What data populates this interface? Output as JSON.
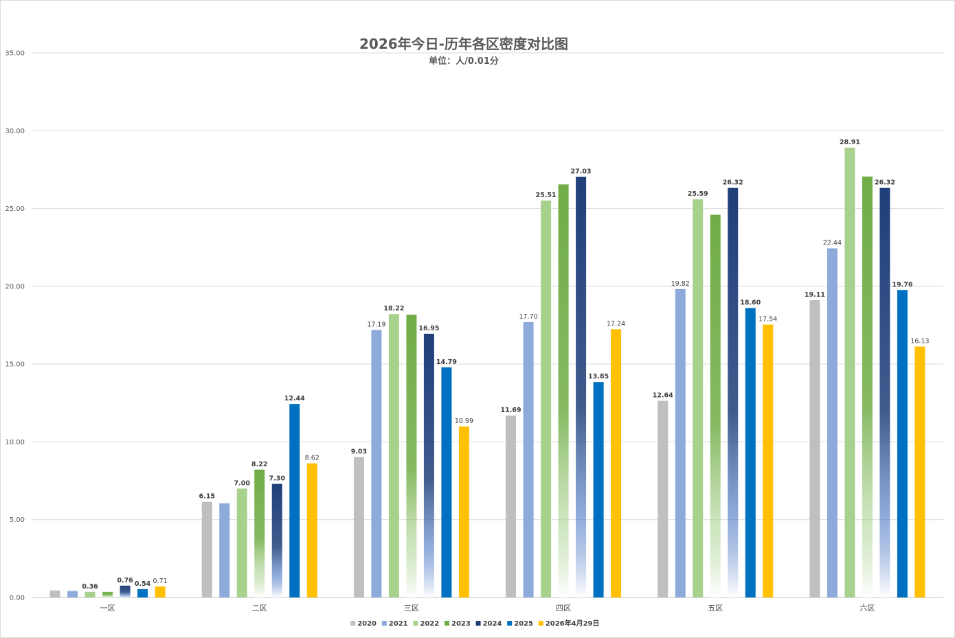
{
  "chart_data": {
    "type": "bar",
    "title": "2026年今日-历年各区密度对比图",
    "subtitle": "单位：人/0.01分",
    "categories": [
      "一区",
      "二区",
      "三区",
      "四区",
      "五区",
      "六区"
    ],
    "ylim": [
      0,
      35
    ],
    "yticks": [
      "0.00",
      "5.00",
      "10.00",
      "15.00",
      "20.00",
      "25.00",
      "30.00",
      "35.00"
    ],
    "ytick_values": [
      0,
      5,
      10,
      15,
      20,
      25,
      30,
      35
    ],
    "grid": true,
    "legend_position": "bottom",
    "series": [
      {
        "name": "2020",
        "color": "#bfbfbf",
        "gradient": false,
        "values": [
          0.45,
          6.15,
          9.03,
          11.69,
          12.64,
          19.11
        ],
        "labels": [
          "",
          "6.15",
          "9.03",
          "11.69",
          "12.64",
          "19.11"
        ],
        "bold": [
          false,
          true,
          true,
          true,
          true,
          true
        ]
      },
      {
        "name": "2021",
        "color": "#8eaadb",
        "gradient": false,
        "values": [
          0.42,
          6.05,
          17.19,
          17.7,
          19.82,
          22.44
        ],
        "labels": [
          "",
          "",
          "17.19",
          "17.70",
          "19.82",
          "22.44"
        ],
        "bold": [
          false,
          false,
          false,
          false,
          false,
          false
        ]
      },
      {
        "name": "2022",
        "color": "#a9d18e",
        "gradient": false,
        "values": [
          0.36,
          7.0,
          18.22,
          25.51,
          25.59,
          28.91
        ],
        "labels": [
          "0.36",
          "7.00",
          "18.22",
          "25.51",
          "25.59",
          "28.91"
        ],
        "bold": [
          true,
          true,
          true,
          true,
          true,
          true
        ]
      },
      {
        "name": "2023",
        "color": "#70ad47",
        "gradient": true,
        "values": [
          0.36,
          8.22,
          18.17,
          26.55,
          24.6,
          27.05
        ],
        "labels": [
          "",
          "8.22",
          "",
          "",
          "",
          ""
        ],
        "bold": [
          false,
          true,
          false,
          false,
          false,
          false
        ]
      },
      {
        "name": "2024",
        "color": "#1f3f7a",
        "gradient": true,
        "values": [
          0.76,
          7.3,
          16.95,
          27.03,
          26.32,
          26.32
        ],
        "labels": [
          "0.76",
          "7.30",
          "16.95",
          "27.03",
          "26.32",
          "26.32"
        ],
        "bold": [
          true,
          true,
          true,
          true,
          true,
          true
        ]
      },
      {
        "name": "2025",
        "color": "#0070c0",
        "gradient": false,
        "values": [
          0.54,
          12.44,
          14.79,
          13.85,
          18.6,
          19.76
        ],
        "labels": [
          "0.54",
          "12.44",
          "14.79",
          "13.85",
          "18.60",
          "19.76"
        ],
        "bold": [
          true,
          true,
          true,
          true,
          true,
          true
        ]
      },
      {
        "name": "2026年4月29日",
        "color": "#ffc000",
        "gradient": false,
        "values": [
          0.71,
          8.62,
          10.99,
          17.24,
          17.54,
          16.13
        ],
        "labels": [
          "0.71",
          "8.62",
          "10.99",
          "17.24",
          "17.54",
          "16.13"
        ],
        "bold": [
          false,
          false,
          false,
          false,
          false,
          false
        ],
        "label_colors": [
          "",
          "",
          "",
          "",
          "",
          "#ff0000"
        ]
      }
    ]
  }
}
